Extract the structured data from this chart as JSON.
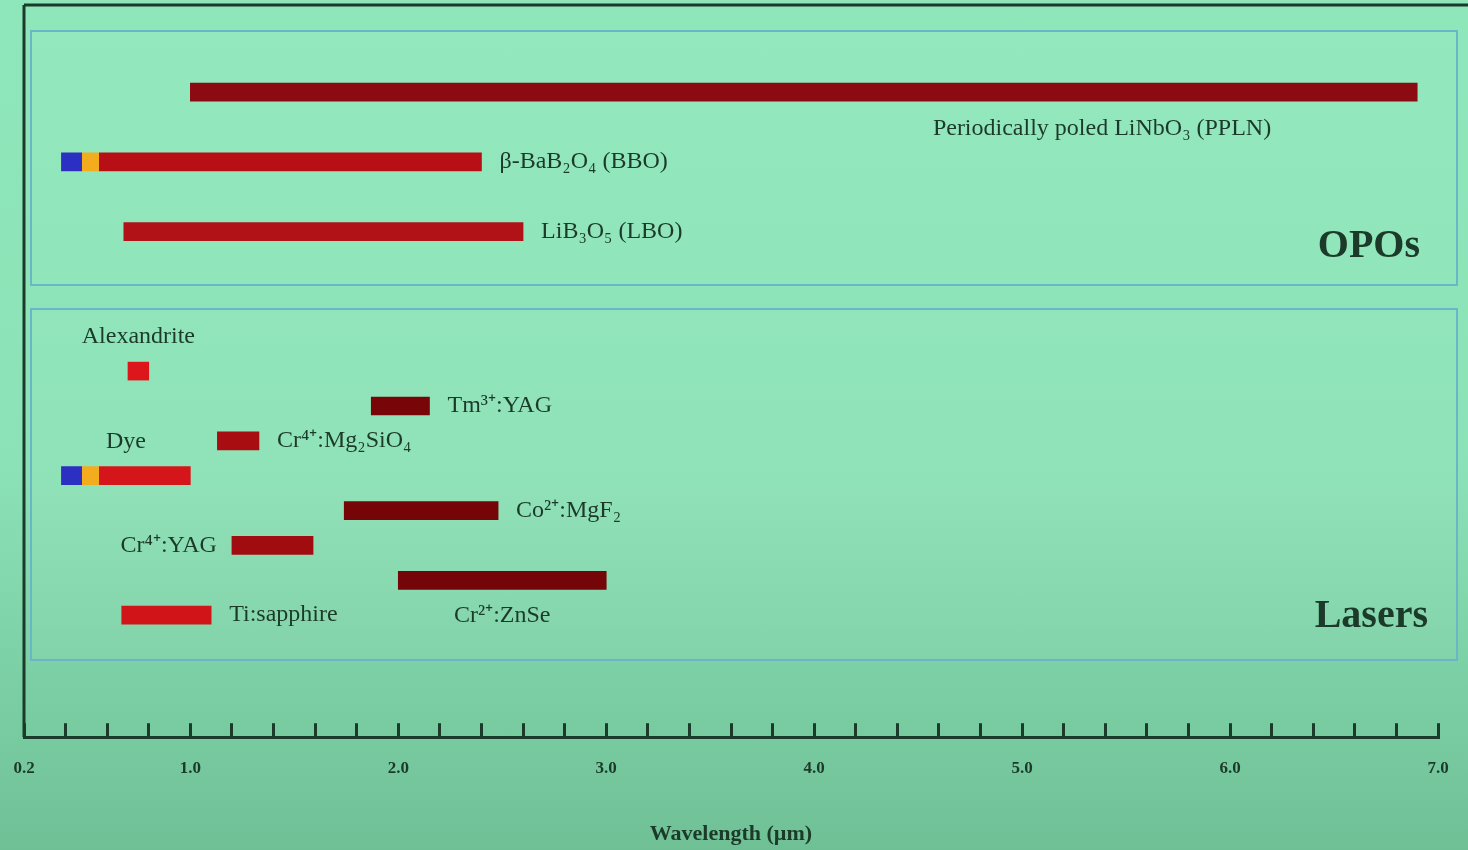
{
  "chart_data": {
    "type": "bar",
    "orientation": "horizontal",
    "xlabel": "Wavelength (µm)",
    "categories": [
      null,
      null,
      null,
      null,
      null,
      null,
      null,
      null,
      null,
      null,
      null,
      null,
      null,
      null,
      null,
      null,
      null,
      null,
      null,
      null,
      null
    ],
    "base": [
      null,
      null,
      1.0,
      null,
      0.38,
      null,
      0.68,
      null,
      null,
      null,
      0.7,
      1.87,
      1.13,
      0.38,
      1.74,
      1.2,
      2.0,
      0.67,
      null,
      null,
      null
    ],
    "values": [
      null,
      null,
      5.9,
      null,
      2.02,
      null,
      1.92,
      null,
      null,
      null,
      0.1,
      0.28,
      0.2,
      0.62,
      0.74,
      0.39,
      1.0,
      0.43,
      null,
      null,
      null
    ],
    "colors": [
      null,
      null,
      "#8c0a12",
      null,
      "#b80f16",
      null,
      "#b01218",
      null,
      null,
      null,
      "#dc161a",
      "#780508",
      "#a80d12",
      "#d4161a",
      "#760508",
      "#a00c10",
      "#740508",
      "#d01418",
      null,
      null,
      null
    ],
    "xlim": [
      0.2,
      7.0
    ],
    "xticks": [
      0.2,
      {
        "value": 0.4,
        "label": null
      },
      {
        "value": 0.6,
        "label": null
      },
      {
        "value": 0.8,
        "label": null
      },
      {
        "value": 1,
        "label": "1.0"
      },
      {
        "value": 1.2,
        "label": null
      },
      {
        "value": 1.4,
        "label": null
      },
      {
        "value": 1.6,
        "label": null
      },
      {
        "value": 1.8,
        "label": null
      },
      {
        "value": 2,
        "label": "2.0"
      },
      {
        "value": 2.2,
        "label": null
      },
      {
        "value": 2.4,
        "label": null
      },
      {
        "value": 2.6,
        "label": null
      },
      {
        "value": 2.8,
        "label": null
      },
      {
        "value": 3,
        "label": "3.0"
      },
      {
        "value": 3.2,
        "label": null
      },
      {
        "value": 3.4,
        "label": null
      },
      {
        "value": 3.6,
        "label": null
      },
      {
        "value": 3.8,
        "label": null
      },
      {
        "value": 4,
        "label": "4.0"
      },
      {
        "value": 4.2,
        "label": null
      },
      {
        "value": 4.4,
        "label": null
      },
      {
        "value": 4.6,
        "label": null
      },
      {
        "value": 4.8,
        "label": null
      },
      {
        "value": 5,
        "label": "5.0"
      },
      {
        "value": 5.2,
        "label": null
      },
      {
        "value": 5.4,
        "label": null
      },
      {
        "value": 5.6,
        "label": null
      },
      {
        "value": 5.8,
        "label": null
      },
      {
        "value": 6,
        "label": "6.0"
      },
      {
        "value": 6.2,
        "label": null
      },
      {
        "value": 6.4,
        "label": null
      },
      {
        "value": 6.6,
        "label": null
      },
      {
        "value": 6.8,
        "label": null
      },
      {
        "value": 7,
        "label": "7.0"
      }
    ],
    "annotations": [
      "Periodically poled LiNbO₃ (PPLN)",
      "β-BaB₂O₄ (BBO)",
      "LiB₃O₅ (LBO)",
      "OPOs",
      "Alexandrite",
      "Tm³⁺:YAG",
      "Cr⁴⁺:Mg₂SiO₄",
      "Dye",
      "Co²⁺:MgF₂",
      "Cr⁴⁺:YAG",
      "Cr²⁺:ZnSe",
      "Ti:sapphire",
      "Lasers"
    ]
  }
}
